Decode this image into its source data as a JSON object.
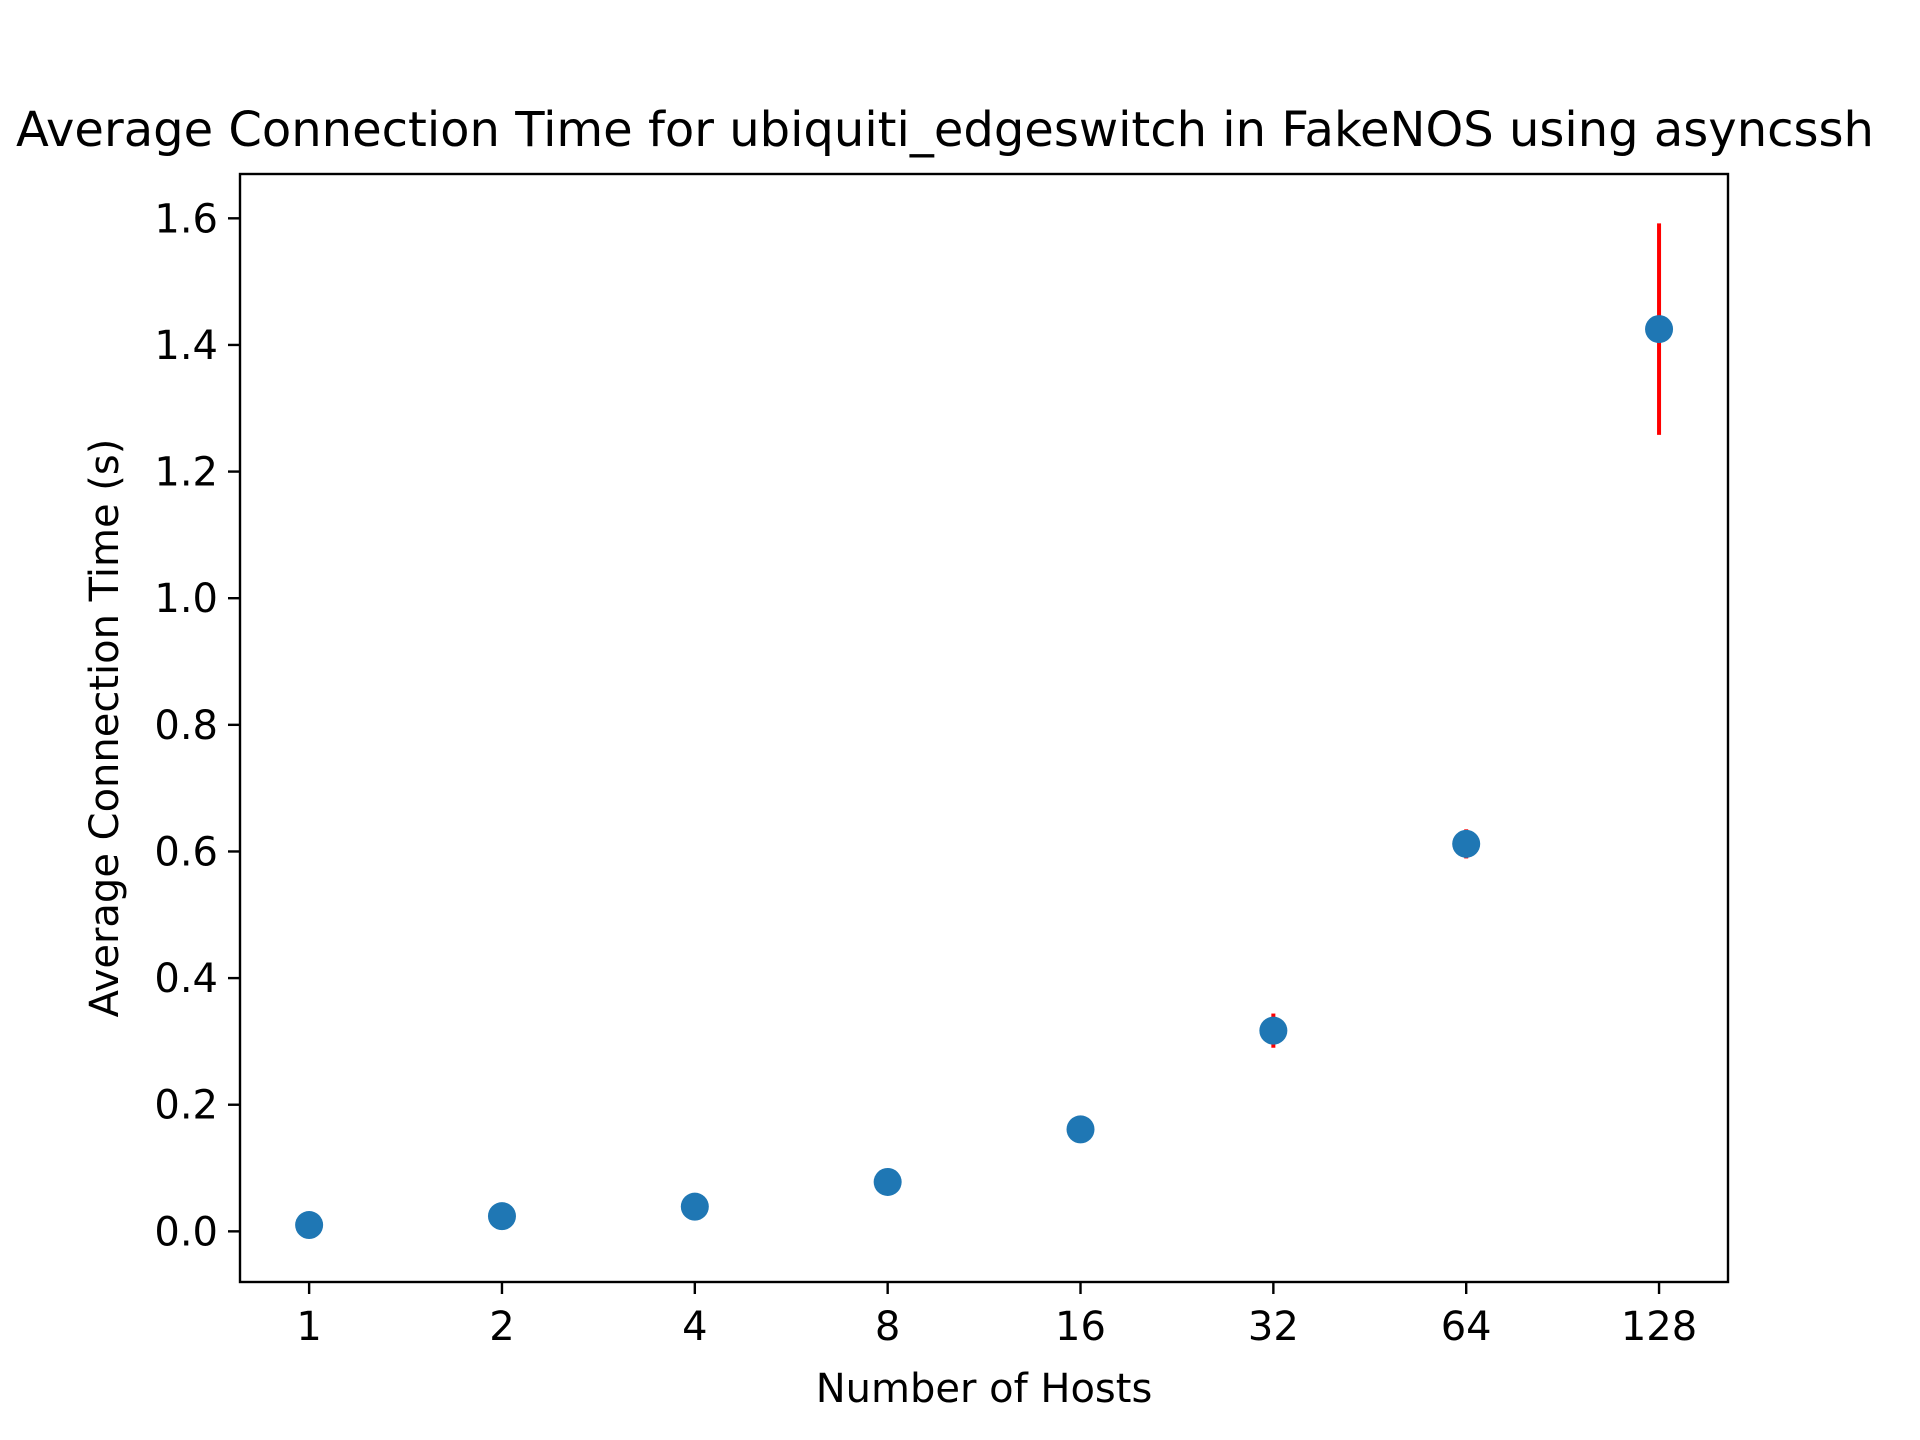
{
  "chart_data": {
    "type": "scatter",
    "title": "Average Connection Time for ubiquiti_edgeswitch in FakeNOS using asyncssh",
    "xlabel": "Number of Hosts",
    "ylabel": "Average Connection Time (s)",
    "x_scale": "log2",
    "x_ticks": [
      "1",
      "2",
      "4",
      "8",
      "16",
      "32",
      "64",
      "128"
    ],
    "xlim": [
      0.78,
      164
    ],
    "ylim": [
      -0.08,
      1.67
    ],
    "y_ticks": [
      "0.0",
      "0.2",
      "0.4",
      "0.6",
      "0.8",
      "1.0",
      "1.2",
      "1.4",
      "1.6"
    ],
    "grid": false,
    "legend": "none",
    "series": [
      {
        "marker_color": "#1f77b4",
        "error_color": "#ff0000",
        "x": [
          1,
          2,
          4,
          8,
          16,
          32,
          64,
          128
        ],
        "y": [
          0.01,
          0.024,
          0.039,
          0.078,
          0.161,
          0.317,
          0.612,
          1.425
        ],
        "error": [
          0.001,
          0.002,
          0.003,
          0.004,
          0.006,
          0.027,
          0.023,
          0.167
        ]
      }
    ]
  }
}
